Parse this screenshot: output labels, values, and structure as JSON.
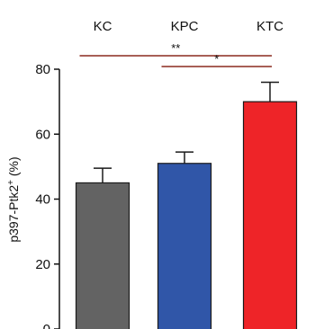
{
  "chart_data": {
    "type": "bar",
    "categories": [
      "KC",
      "KPC",
      "KTC"
    ],
    "values": [
      45,
      51,
      70
    ],
    "errors": [
      4.5,
      3.5,
      6
    ],
    "colors": [
      "#636363",
      "#3056a8",
      "#ee2428"
    ],
    "ylabel_main": "p397-Ptk2",
    "ylabel_sup": "+",
    "ylabel_unit": " (%)",
    "ylim": [
      0,
      80
    ],
    "yticks": [
      "0",
      "20",
      "40",
      "60",
      "80"
    ],
    "significance": [
      {
        "from": "KC",
        "to": "KTC",
        "label": "**",
        "color": "#8b2a1e"
      },
      {
        "from": "KPC",
        "to": "KTC",
        "label": "*",
        "color": "#8b2a1e"
      }
    ],
    "grid": false,
    "legend": "none"
  }
}
